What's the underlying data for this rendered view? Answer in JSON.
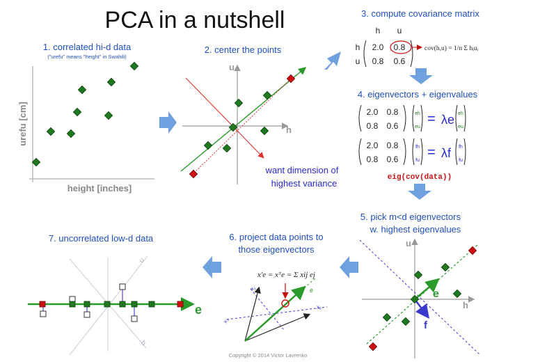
{
  "title": "PCA in a nutshell",
  "step1": {
    "heading": "1. correlated hi-d data",
    "note": "(\"urefu\" means \"height\" in Swahili)",
    "ylabel": "urefu [cm]",
    "xlabel": "height [inches]"
  },
  "step2": {
    "heading": "2. center the points",
    "axis_u": "u",
    "axis_h": "h",
    "annotation_line1": "want dimension of",
    "annotation_line2": "highest variance"
  },
  "step3": {
    "heading": "3. compute covariance matrix",
    "col_h": "h",
    "col_u": "u",
    "row_h": "h",
    "row_u": "u",
    "m11": "2.0",
    "m12": "0.8",
    "m21": "0.8",
    "m22": "0.6",
    "formula": "cov(h,u) = 1/n Σ hᵢuᵢ"
  },
  "step4": {
    "heading": "4. eigenvectors + eigenvalues",
    "m11": "2.0",
    "m12": "0.8",
    "m21": "0.8",
    "m22": "0.6",
    "vec_e_h": "eh",
    "vec_e_u": "eu",
    "vec_f_h": "fh",
    "vec_f_u": "fu",
    "lambda_e": "λe",
    "lambda_f": "λf",
    "equals": "=",
    "code": "eig(cov(data))"
  },
  "step5": {
    "heading_line1": "5. pick m<d eigenvectors",
    "heading_line2": "w. highest eigenvalues",
    "axis_u": "u",
    "axis_h": "h",
    "label_e": "e",
    "label_f": "f"
  },
  "step6": {
    "heading_line1": "6. project data points to",
    "heading_line2": "those eigenvectors",
    "formula": "x'e = xᵀe = Σ xij ej"
  },
  "step7": {
    "heading": "7. uncorrelated low-d data",
    "label_e": "e"
  },
  "footer": "Copyright © 2014 Victor Lavrenko",
  "colors": {
    "heading_blue": "#1f4fbf",
    "arrow_blue": "#6fa0e0",
    "point_green": "#1f7a1f",
    "point_red": "#d01010",
    "axis_gray": "#999999",
    "line_green": "#2a9a2a",
    "line_red": "#e03030",
    "dash_blue": "#3a3ad0",
    "code_red": "#cc1111"
  }
}
